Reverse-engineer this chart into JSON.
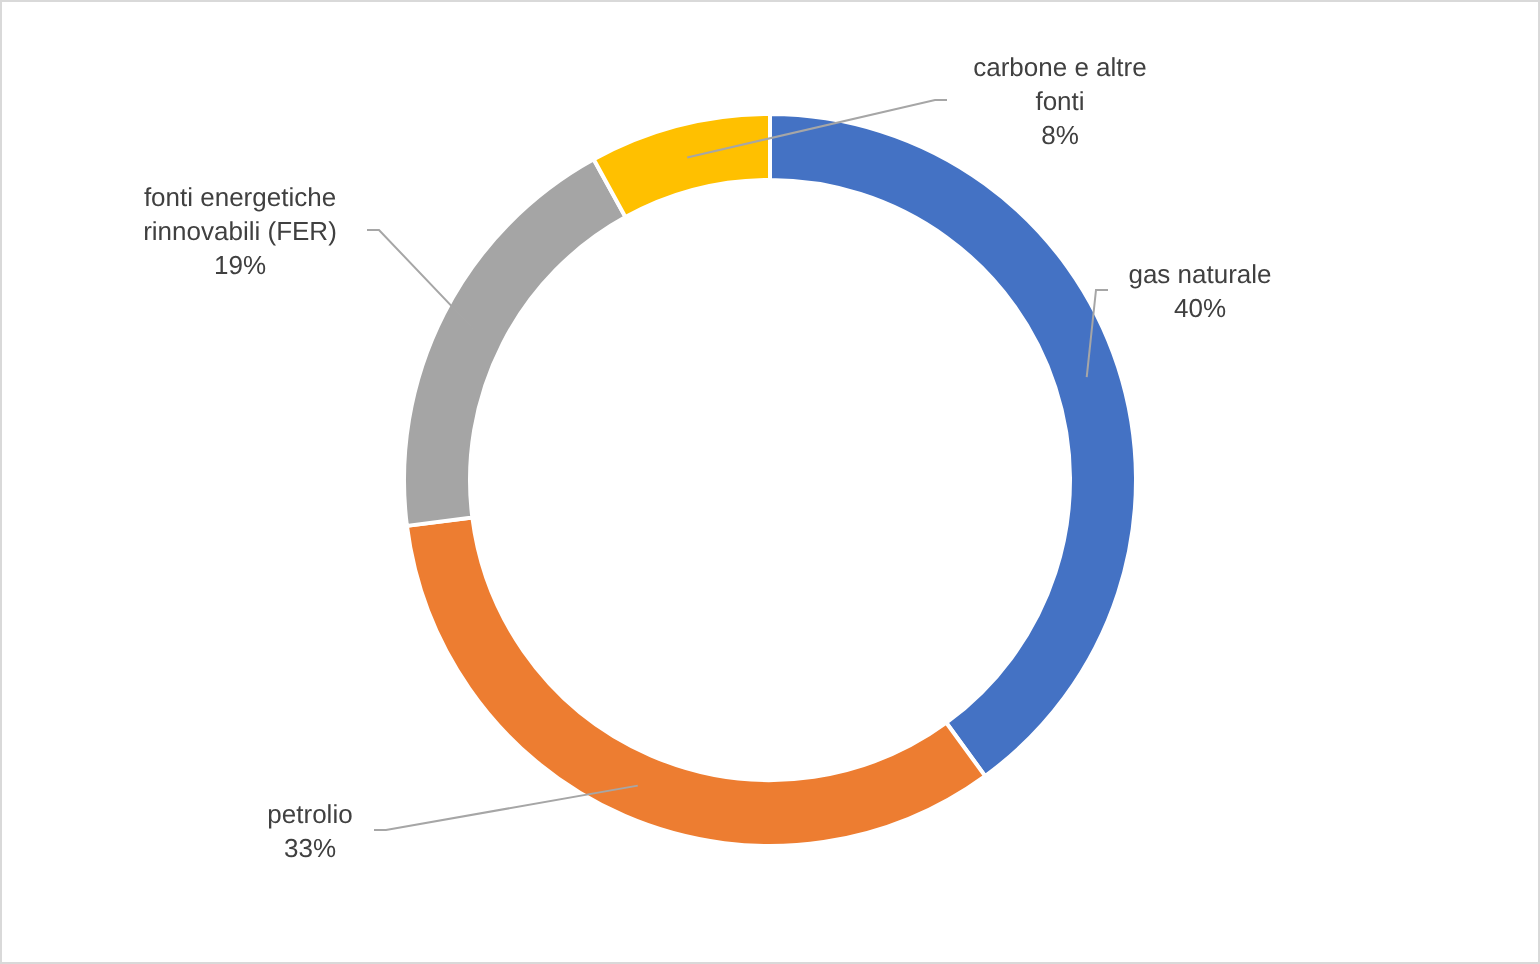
{
  "chart_data": {
    "type": "donut",
    "categories": [
      "gas naturale",
      "petrolio",
      "fonti energetiche rinnovabili (FER)",
      "carbone e altre fonti"
    ],
    "values": [
      40,
      33,
      19,
      8
    ],
    "colors": [
      "#4472c4",
      "#ed7d31",
      "#a5a5a5",
      "#ffc000"
    ],
    "value_labels": [
      "40%",
      "33%",
      "19%",
      "8%"
    ]
  }
}
